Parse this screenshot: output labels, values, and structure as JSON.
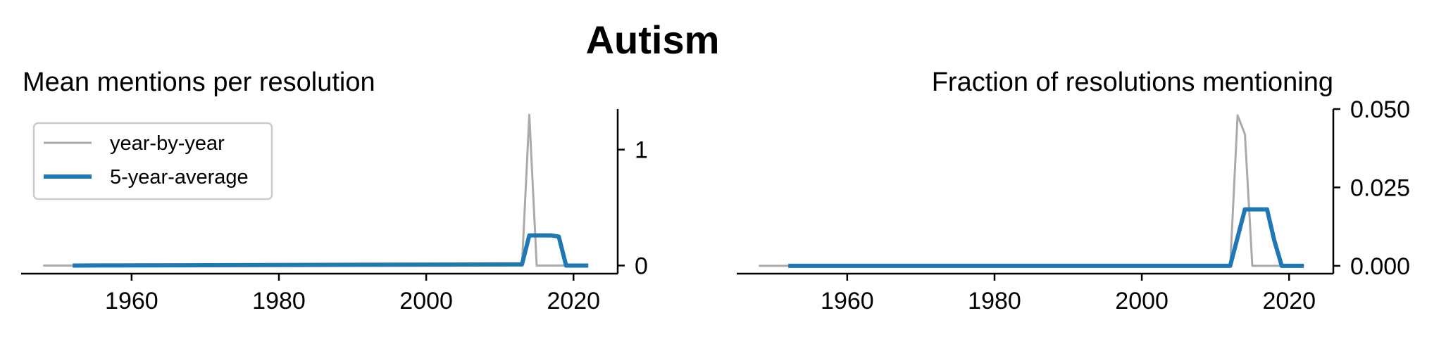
{
  "suptitle": "Autism",
  "colors": {
    "year_by_year": "#aaaaaa",
    "avg": "#1f77b4"
  },
  "legend": {
    "items": [
      "year-by-year",
      "5-year-average"
    ],
    "placement": "upper-left"
  },
  "chart_data": [
    {
      "type": "line",
      "title": "Mean mentions per resolution",
      "xlim": [
        1945,
        2026
      ],
      "ylim": [
        -0.07,
        1.35
      ],
      "xticks": [
        1960,
        1980,
        2000,
        2020
      ],
      "yticks": [
        0,
        1
      ],
      "ytick_labels": [
        "0",
        "1"
      ],
      "yaxis_side": "right",
      "series": [
        {
          "name": "year-by-year",
          "x": [
            1948,
            2013,
            2014,
            2015,
            2022
          ],
          "y": [
            0,
            0,
            1.3,
            0,
            0
          ]
        },
        {
          "name": "5-year-average",
          "x": [
            1952,
            2013,
            2014,
            2017,
            2018,
            2019,
            2022
          ],
          "y": [
            0,
            0.01,
            0.26,
            0.26,
            0.25,
            0,
            0
          ]
        }
      ]
    },
    {
      "type": "line",
      "title": "Fraction of resolutions mentioning",
      "xlim": [
        1945,
        2026
      ],
      "ylim": [
        -0.0025,
        0.05
      ],
      "xticks": [
        1960,
        1980,
        2000,
        2020
      ],
      "yticks": [
        0,
        0.025,
        0.05
      ],
      "ytick_labels": [
        "0.000",
        "0.025",
        "0.050"
      ],
      "yaxis_side": "right",
      "series": [
        {
          "name": "year-by-year",
          "x": [
            1948,
            2012,
            2013,
            2014,
            2015,
            2022
          ],
          "y": [
            0,
            0,
            0.048,
            0.042,
            0,
            0
          ]
        },
        {
          "name": "5-year-average",
          "x": [
            1952,
            2012,
            2014,
            2017,
            2018,
            2019,
            2022
          ],
          "y": [
            0,
            0,
            0.018,
            0.018,
            0.008,
            0,
            0
          ]
        }
      ]
    }
  ]
}
